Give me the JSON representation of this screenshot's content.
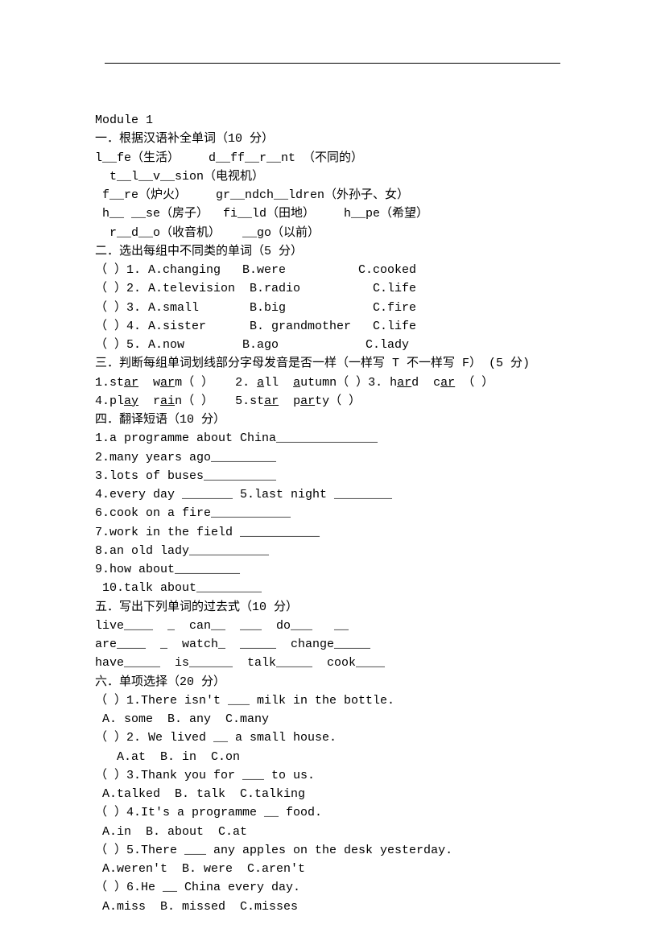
{
  "header": {
    "module": "Module 1"
  },
  "s1": {
    "title": "一．根据汉语补全单词（10 分）",
    "l1": "l__fe（生活）    d__ff__r__nt （不同的）",
    "l2": "  t__l__v__sion（电视机）",
    "l3": " f__re（炉火）    gr__ndch__ldren（外孙子、女）",
    "l4": " h__ __se（房子）  fi__ld（田地）    h__pe（希望）",
    "l5": "  r__d__o（收音机）   __go（以前）"
  },
  "s2": {
    "title": "二．选出每组中不同类的单词（5 分）",
    "r1": "（ ）1. A.changing   B.were          C.cooked",
    "r2": "（ ）2. A.television  B.radio          C.life",
    "r3": "（ ）3. A.small       B.big            C.fire",
    "r4": "（ ）4. A.sister      B. grandmother   C.life",
    "r5": "（ ）5. A.now        B.ago            C.lady"
  },
  "s3": {
    "title": "三．判断每组单词划线部分字母发音是否一样（一样写 T 不一样写 F） (5 分)"
  },
  "s4": {
    "title": "四．翻译短语（10 分）",
    "l1": "1.a programme about China______________",
    "l2": "2.many years ago_________",
    "l3": "3.lots of buses__________",
    "l4": "4.every day _______ 5.last night ________",
    "l5": "6.cook on a fire___________",
    "l6": "7.work in the field ___________",
    "l7": "8.an old lady___________",
    "l8": "9.how about_________",
    "l9": " 10.talk about_________"
  },
  "s5": {
    "title": "五．写出下列单词的过去式（10 分）",
    "l1": "live____  _  can__  ___  do___   __",
    "l2": "are____  _  watch_  _____  change_____",
    "l3": "have_____  is______  talk_____  cook____"
  },
  "s6": {
    "title": "六．单项选择（20 分）",
    "q1": "（ ）1.There isn't ___ milk in the bottle.",
    "a1": " A. some  B. any  C.many",
    "q2": "（ ）2. We lived __ a small house.",
    "a2": "   A.at  B. in  C.on",
    "q3": "（ ）3.Thank you for ___ to us.",
    "a3": " A.talked  B. talk  C.talking",
    "q4": "（ ）4.It's a programme __ food.",
    "a4": " A.in  B. about  C.at",
    "q5": "（ ）5.There ___ any apples on the desk yesterday.",
    "a5": " A.weren't  B. were  C.aren't",
    "q6": "（ ）6.He __ China every day.",
    "a6": " A.miss  B. missed  C.misses"
  }
}
